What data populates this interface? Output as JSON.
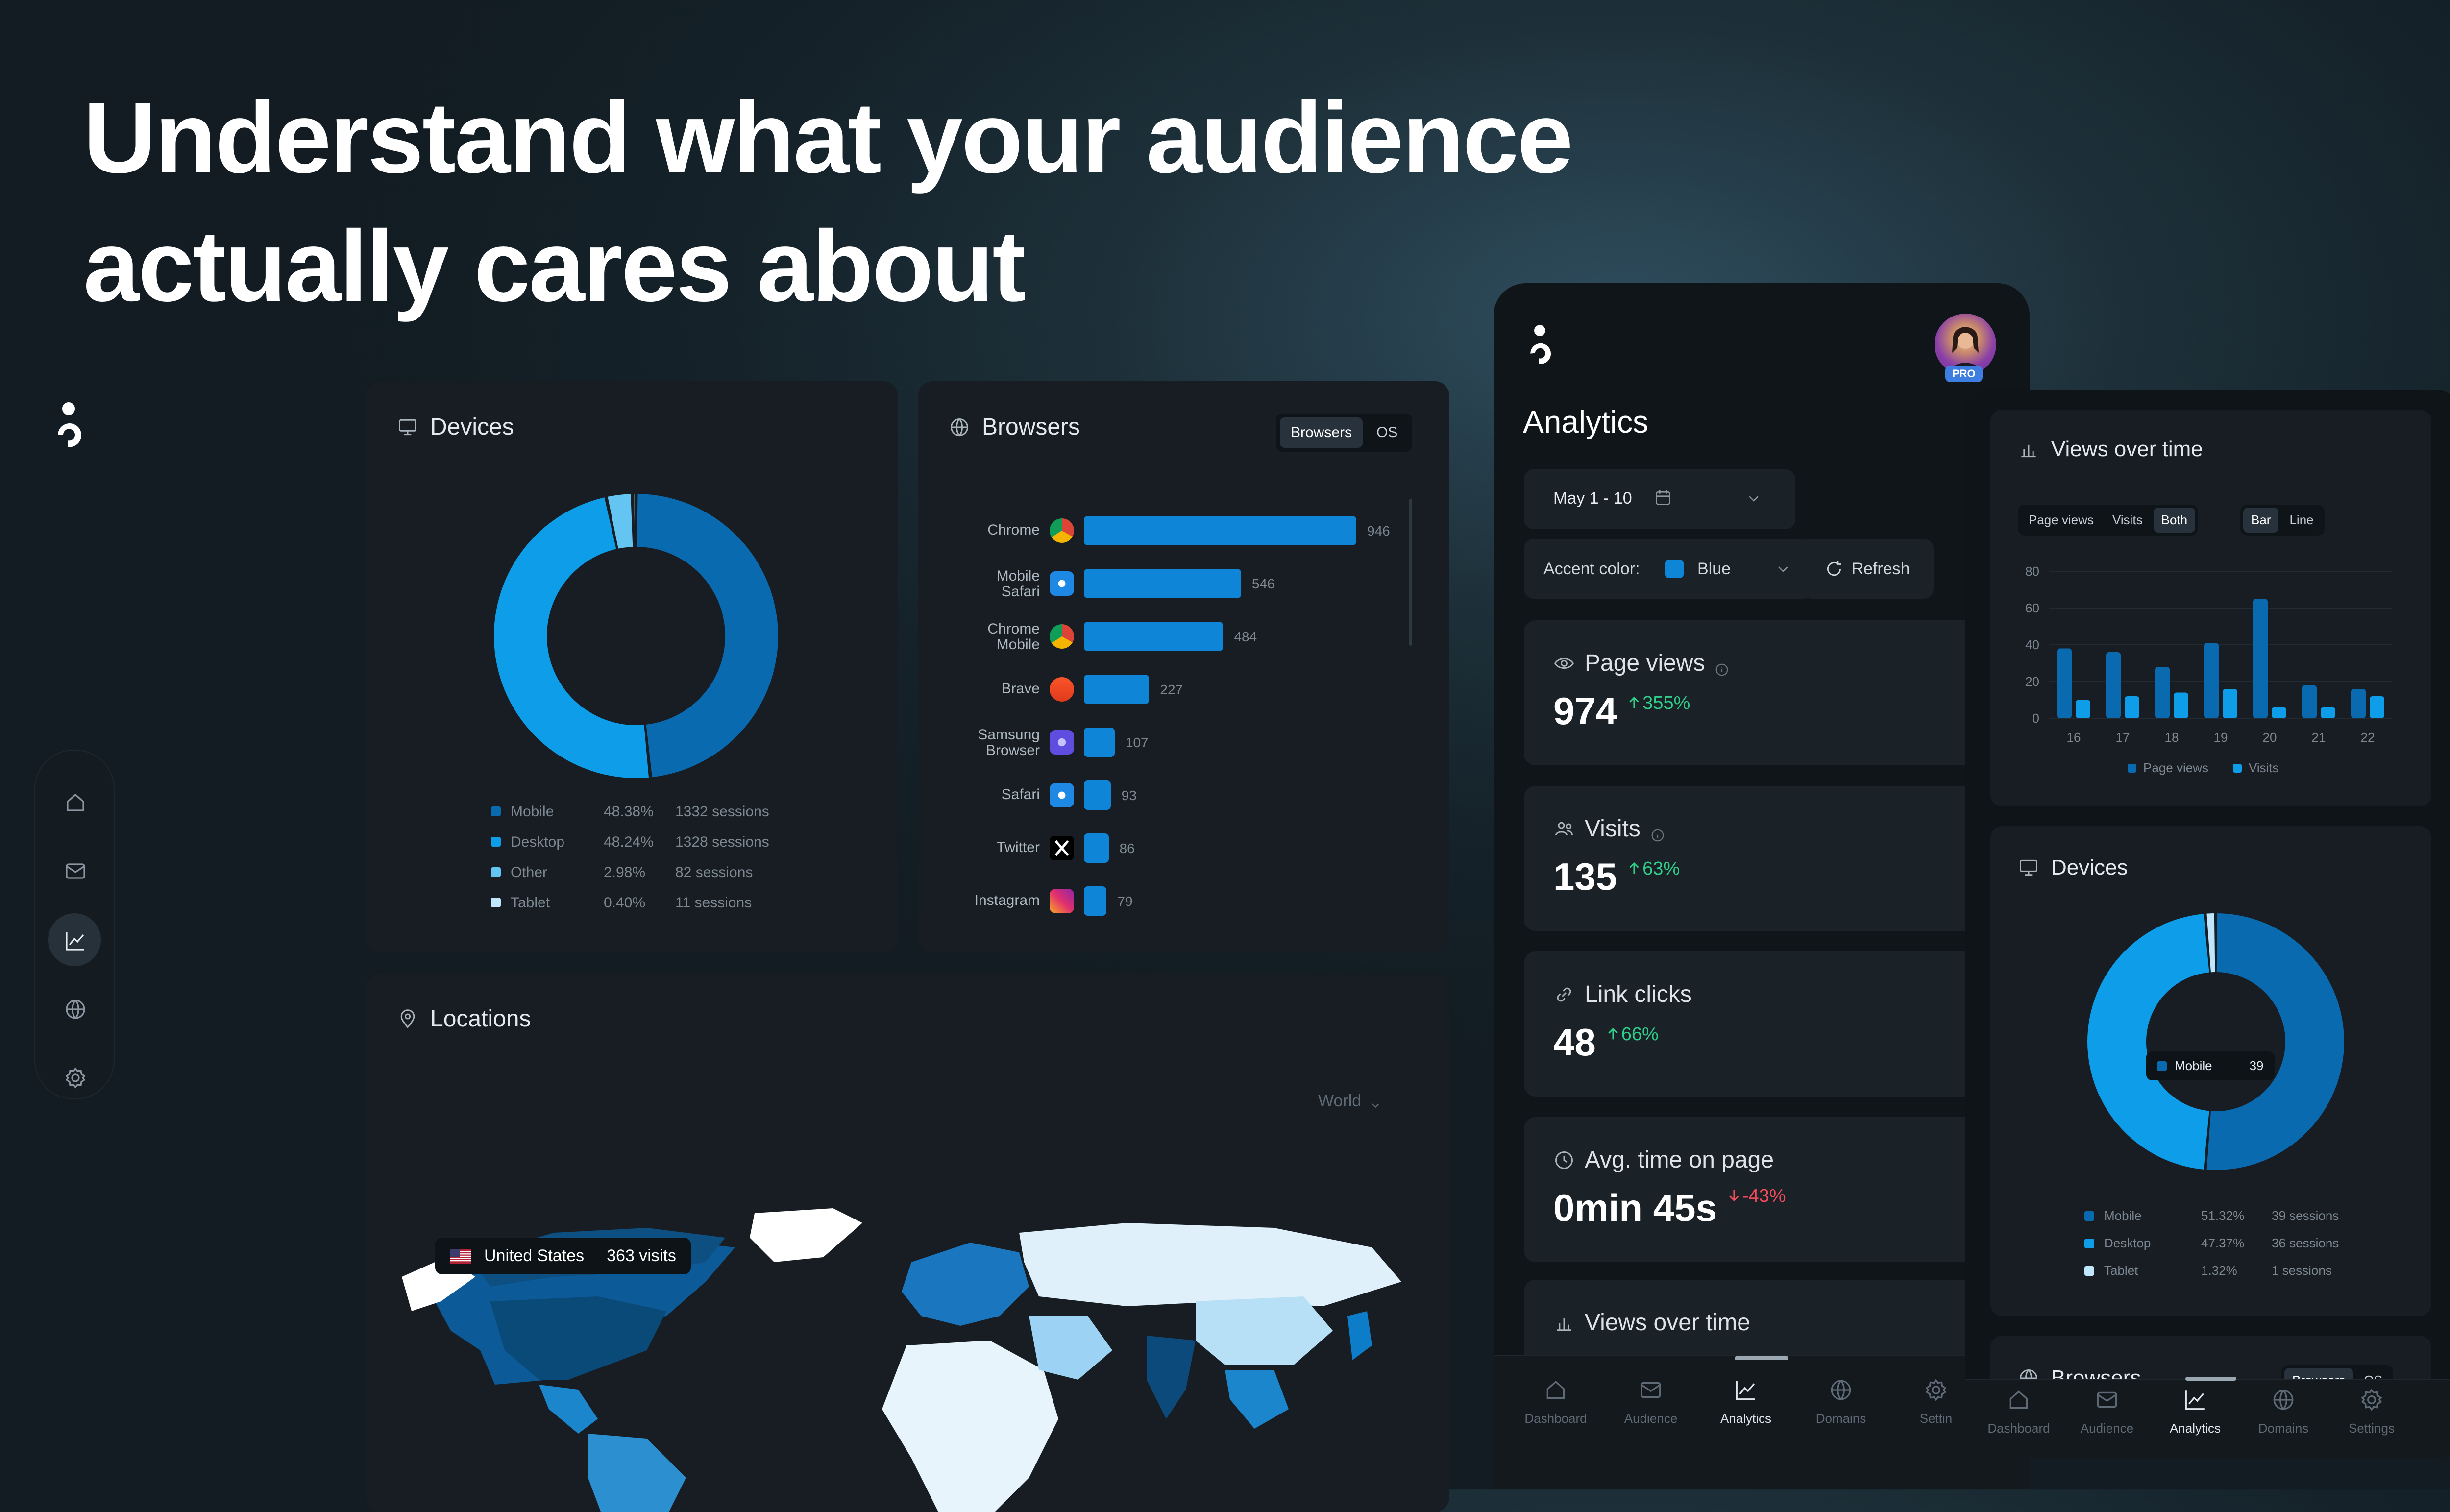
{
  "headline": {
    "line1": "Understand what your audience",
    "line2": "actually cares about"
  },
  "colors": {
    "accent": "#0f85d8",
    "mobile": "#0a6ab0",
    "desktop": "#0e9de8",
    "other": "#64c4f2",
    "tablet": "#bfe6fa",
    "up": "#2fcf8a",
    "down": "#ef4b5a"
  },
  "sidebar": {
    "items": [
      {
        "name": "home-icon",
        "active": false
      },
      {
        "name": "mail-icon",
        "active": false
      },
      {
        "name": "chart-icon",
        "active": true
      },
      {
        "name": "globe-icon",
        "active": false
      },
      {
        "name": "settings-icon",
        "active": false
      }
    ]
  },
  "devices": {
    "title": "Devices",
    "legend": [
      {
        "name": "Mobile",
        "pct": "48.38%",
        "sessions": "1332 sessions"
      },
      {
        "name": "Desktop",
        "pct": "48.24%",
        "sessions": "1328 sessions"
      },
      {
        "name": "Other",
        "pct": "2.98%",
        "sessions": "82 sessions"
      },
      {
        "name": "Tablet",
        "pct": "0.40%",
        "sessions": "11 sessions"
      }
    ]
  },
  "browsers": {
    "title": "Browsers",
    "toggle": [
      "Browsers",
      "OS"
    ],
    "rows": [
      {
        "label": "Chrome",
        "value": 946,
        "icon": "chrome-icon"
      },
      {
        "label": "Mobile Safari",
        "value": 546,
        "icon": "safari-icon"
      },
      {
        "label": "Chrome Mobile",
        "value": 484,
        "icon": "chrome-icon"
      },
      {
        "label": "Brave",
        "value": 227,
        "icon": "brave-icon"
      },
      {
        "label": "Samsung Browser",
        "value": 107,
        "icon": "samsung-icon"
      },
      {
        "label": "Safari",
        "value": 93,
        "icon": "safari-icon"
      },
      {
        "label": "Twitter",
        "value": 86,
        "icon": "x-icon"
      },
      {
        "label": "Instagram",
        "value": 79,
        "icon": "instagram-icon"
      }
    ]
  },
  "locations": {
    "title": "Locations",
    "region": "World",
    "tooltip": {
      "country": "United States",
      "visits": "363 visits"
    }
  },
  "analytics": {
    "title": "Analytics",
    "avatar_badge": "PRO",
    "date_range": "May 1 - 10",
    "accent_label": "Accent color:",
    "accent_value": "Blue",
    "refresh": "Refresh",
    "stats": [
      {
        "label": "Page views",
        "value": "974",
        "change": "355%",
        "dir": "up",
        "icon": "eye-icon",
        "info": true
      },
      {
        "label": "Visits",
        "value": "135",
        "change": "63%",
        "dir": "up",
        "icon": "users-icon",
        "info": true
      },
      {
        "label": "Link clicks",
        "value": "48",
        "change": "66%",
        "dir": "up",
        "icon": "link-icon",
        "info": false
      },
      {
        "label": "Avg. time on page",
        "value": "0min 45s",
        "change": "-43%",
        "dir": "down",
        "icon": "clock-icon",
        "info": false
      }
    ],
    "views_title": "Views over time",
    "tabs": [
      "Dashboard",
      "Audience",
      "Analytics",
      "Domains",
      "Settin"
    ]
  },
  "tablet": {
    "views": {
      "title": "Views over time",
      "toggle1": [
        "Page views",
        "Visits",
        "Both"
      ],
      "toggle2": [
        "Bar",
        "Line"
      ],
      "legend": [
        "Page views",
        "Visits"
      ]
    },
    "devices": {
      "title": "Devices",
      "tooltip": {
        "name": "Mobile",
        "value": "39"
      },
      "legend": [
        {
          "name": "Mobile",
          "pct": "51.32%",
          "sessions": "39 sessions"
        },
        {
          "name": "Desktop",
          "pct": "47.37%",
          "sessions": "36 sessions"
        },
        {
          "name": "Tablet",
          "pct": "1.32%",
          "sessions": "1 sessions"
        }
      ]
    },
    "browsers": {
      "title": "Browsers",
      "toggle": [
        "Browsers",
        "OS"
      ]
    },
    "tabs": [
      "Dashboard",
      "Audience",
      "Analytics",
      "Domains",
      "Settings"
    ]
  },
  "chart_data": [
    {
      "type": "pie",
      "title": "Devices",
      "labels": [
        "Mobile",
        "Desktop",
        "Other",
        "Tablet"
      ],
      "values": [
        48.38,
        48.24,
        2.98,
        0.4
      ],
      "donut": true
    },
    {
      "type": "bar",
      "title": "Browsers",
      "orientation": "horizontal",
      "categories": [
        "Chrome",
        "Mobile Safari",
        "Chrome Mobile",
        "Brave",
        "Samsung Browser",
        "Safari",
        "Twitter",
        "Instagram"
      ],
      "values": [
        946,
        546,
        484,
        227,
        107,
        93,
        86,
        79
      ]
    },
    {
      "type": "bar",
      "title": "Views over time",
      "categories": [
        "16",
        "17",
        "18",
        "19",
        "20",
        "21",
        "22"
      ],
      "yticks": [
        "0",
        "20",
        "40",
        "60",
        "80"
      ],
      "ylim": [
        0,
        80
      ],
      "series": [
        {
          "name": "Page views",
          "values": [
            38,
            36,
            28,
            41,
            65,
            18,
            16
          ]
        },
        {
          "name": "Visits",
          "values": [
            10,
            12,
            14,
            16,
            6,
            6,
            12
          ]
        }
      ],
      "legend": "bottom"
    },
    {
      "type": "pie",
      "title": "Devices",
      "labels": [
        "Mobile",
        "Desktop",
        "Tablet"
      ],
      "values": [
        51.32,
        47.37,
        1.32
      ],
      "donut": true
    }
  ]
}
